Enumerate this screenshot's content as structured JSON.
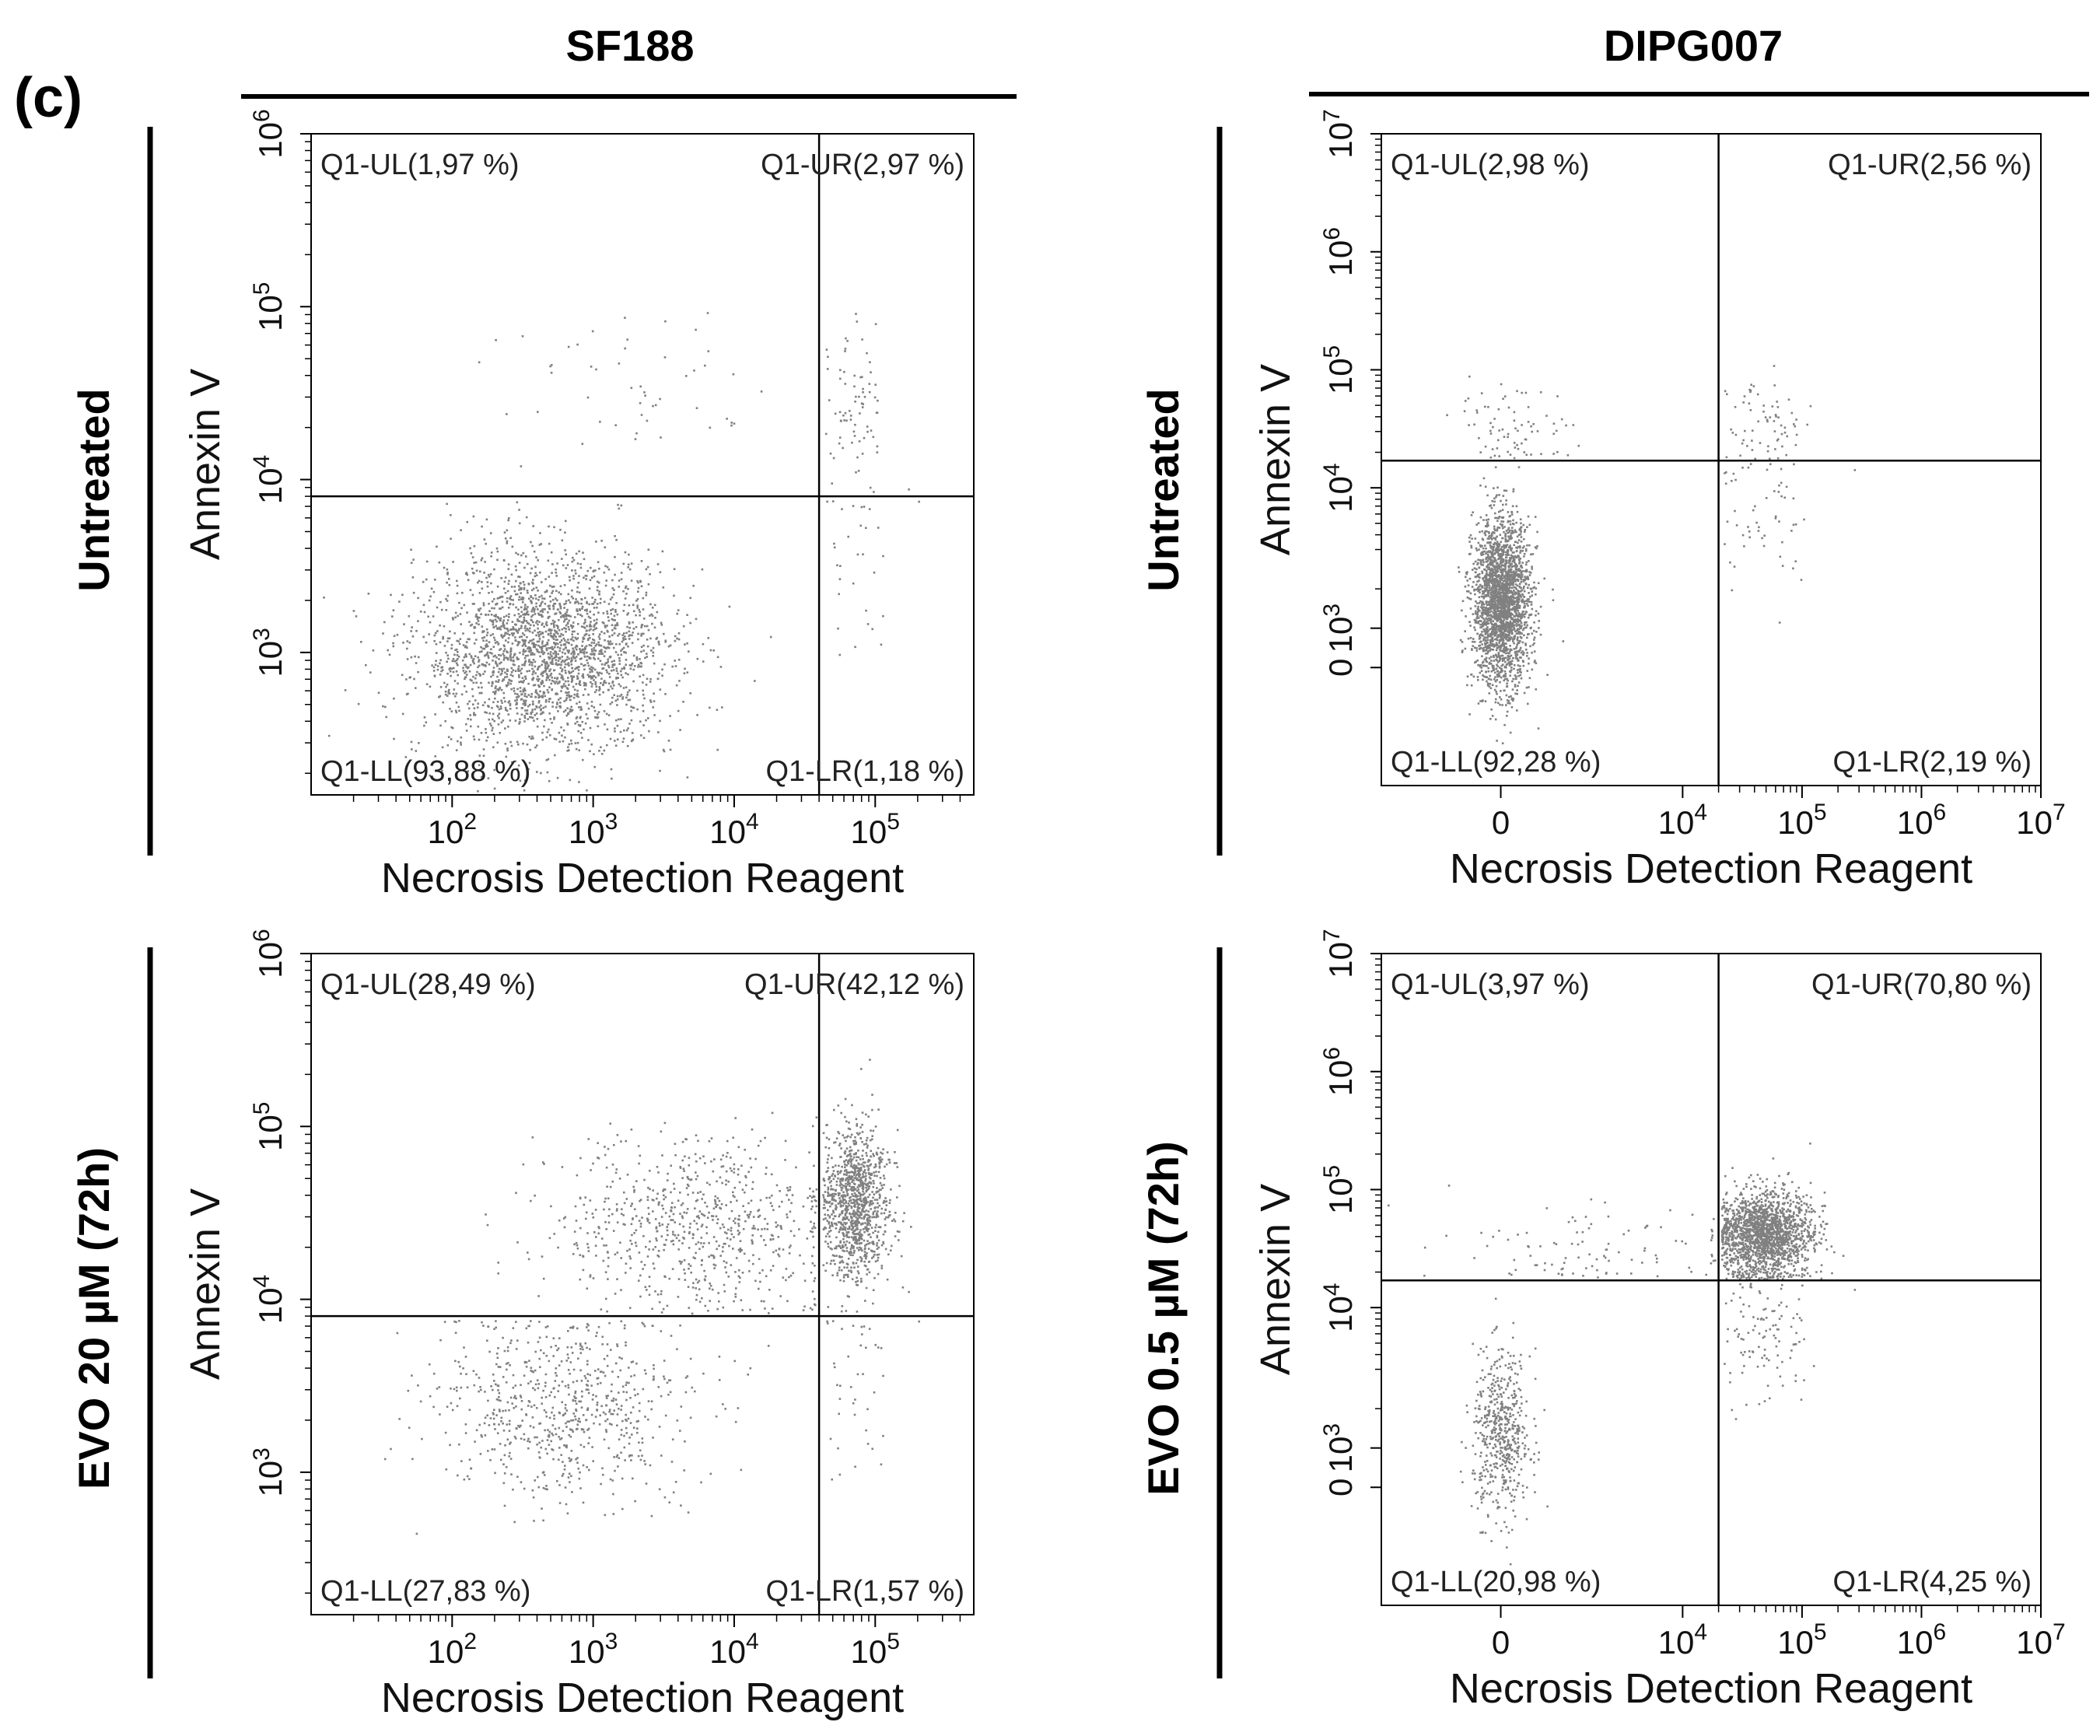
{
  "panel_label": "(c)",
  "columns": [
    {
      "title": "SF188"
    },
    {
      "title": "DIPG007"
    }
  ],
  "rows": [
    {
      "title": "Untreated"
    },
    {
      "title": "Untreated"
    },
    {
      "title": "EVO 20 µM (72h)"
    },
    {
      "title": "EVO 0.5 µM (72h)"
    }
  ],
  "colors": {
    "dots": "#808080",
    "lines": "#000000",
    "text": "#111111"
  },
  "chart_data": [
    {
      "type": "scatter",
      "title": "SF188 Untreated",
      "xlabel": "Necrosis Detection Reagent",
      "ylabel": "Annexin V",
      "x_ticks": [
        "10^2",
        "10^3",
        "10^4",
        "10^5"
      ],
      "y_ticks": [
        "10^3",
        "10^4",
        "10^5",
        "10^6"
      ],
      "xlim": [
        10,
        500000
      ],
      "ylim": [
        150,
        1000000
      ],
      "gate": {
        "x": 40000,
        "y": 8000
      },
      "quadrants": {
        "UL": "Q1-UL(1,97 %)",
        "UR": "Q1-UR(2,97 %)",
        "LL": "Q1-LL(93,88 %)",
        "LR": "Q1-LR(1,18 %)"
      },
      "quadrant_pct": {
        "UL": 1.97,
        "UR": 2.97,
        "LL": 93.88,
        "LR": 1.18
      }
    },
    {
      "type": "scatter",
      "title": "DIPG007 Untreated",
      "xlabel": "Necrosis Detection Reagent",
      "ylabel": "Annexin V",
      "x_ticks": [
        "0",
        "10^4",
        "10^5",
        "10^6",
        "10^7"
      ],
      "y_ticks": [
        "0",
        "10^3",
        "10^4",
        "10^5",
        "10^6",
        "10^7"
      ],
      "xlim": [
        -3000,
        10000000
      ],
      "ylim": [
        -3000,
        10000000
      ],
      "gate": {
        "x": 20000,
        "y": 17000
      },
      "quadrants": {
        "UL": "Q1-UL(2,98 %)",
        "UR": "Q1-UR(2,56 %)",
        "LL": "Q1-LL(92,28 %)",
        "LR": "Q1-LR(2,19 %)"
      },
      "quadrant_pct": {
        "UL": 2.98,
        "UR": 2.56,
        "LL": 92.28,
        "LR": 2.19
      }
    },
    {
      "type": "scatter",
      "title": "SF188 EVO 20 µM (72h)",
      "xlabel": "Necrosis Detection Reagent",
      "ylabel": "Annexin V",
      "x_ticks": [
        "10^2",
        "10^3",
        "10^4",
        "10^5"
      ],
      "y_ticks": [
        "10^3",
        "10^4",
        "10^5",
        "10^6"
      ],
      "xlim": [
        10,
        500000
      ],
      "ylim": [
        150,
        1000000
      ],
      "gate": {
        "x": 40000,
        "y": 8000
      },
      "quadrants": {
        "UL": "Q1-UL(28,49 %)",
        "UR": "Q1-UR(42,12 %)",
        "LL": "Q1-LL(27,83 %)",
        "LR": "Q1-LR(1,57 %)"
      },
      "quadrant_pct": {
        "UL": 28.49,
        "UR": 42.12,
        "LL": 27.83,
        "LR": 1.57
      }
    },
    {
      "type": "scatter",
      "title": "DIPG007 EVO 0.5 µM (72h)",
      "xlabel": "Necrosis Detection Reagent",
      "ylabel": "Annexin V",
      "x_ticks": [
        "0",
        "10^4",
        "10^5",
        "10^6",
        "10^7"
      ],
      "y_ticks": [
        "0",
        "10^3",
        "10^4",
        "10^5",
        "10^6",
        "10^7"
      ],
      "xlim": [
        -3000,
        10000000
      ],
      "ylim": [
        -3000,
        10000000
      ],
      "gate": {
        "x": 20000,
        "y": 17000
      },
      "quadrants": {
        "UL": "Q1-UL(3,97 %)",
        "UR": "Q1-UR(70,80 %)",
        "LL": "Q1-LL(20,98 %)",
        "LR": "Q1-LR(4,25 %)"
      },
      "quadrant_pct": {
        "UL": 3.97,
        "UR": 70.8,
        "LL": 20.98,
        "LR": 4.25
      }
    }
  ]
}
